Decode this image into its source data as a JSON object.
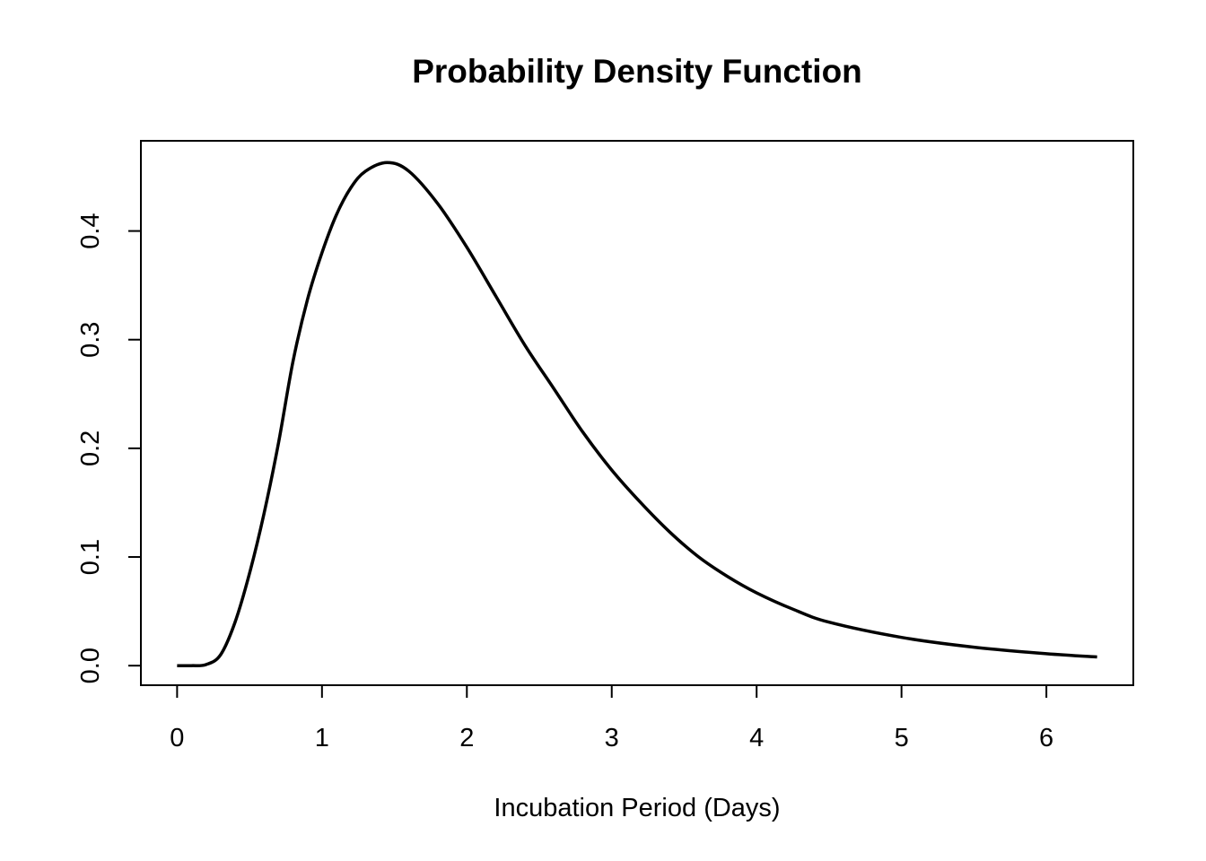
{
  "chart_data": {
    "type": "line",
    "title": "Probability Density Function",
    "xlabel": "Incubation Period (Days)",
    "ylabel": "",
    "xlim": [
      -0.25,
      6.6
    ],
    "ylim": [
      -0.018,
      0.483
    ],
    "xticks": [
      0,
      1,
      2,
      3,
      4,
      5,
      6
    ],
    "xtick_labels": [
      "0",
      "1",
      "2",
      "3",
      "4",
      "5",
      "6"
    ],
    "yticks": [
      0.0,
      0.1,
      0.2,
      0.3,
      0.4
    ],
    "ytick_labels": [
      "0.0",
      "0.1",
      "0.2",
      "0.3",
      "0.4"
    ],
    "grid": false,
    "series": [
      {
        "color": "#000000",
        "x": [
          0.0,
          0.1,
          0.2,
          0.3,
          0.4,
          0.5,
          0.6,
          0.7,
          0.8,
          0.9,
          1.0,
          1.1,
          1.2,
          1.3,
          1.45,
          1.6,
          1.8,
          2.0,
          2.2,
          2.4,
          2.6,
          2.8,
          3.0,
          3.2,
          3.4,
          3.6,
          3.8,
          4.0,
          4.25,
          4.5,
          5.0,
          5.5,
          6.0,
          6.35
        ],
        "y": [
          0.0,
          0.0,
          0.001,
          0.01,
          0.04,
          0.085,
          0.14,
          0.205,
          0.28,
          0.337,
          0.38,
          0.415,
          0.44,
          0.455,
          0.463,
          0.455,
          0.425,
          0.385,
          0.34,
          0.295,
          0.255,
          0.215,
          0.18,
          0.15,
          0.123,
          0.1,
          0.082,
          0.067,
          0.052,
          0.04,
          0.026,
          0.017,
          0.011,
          0.008
        ]
      }
    ]
  }
}
